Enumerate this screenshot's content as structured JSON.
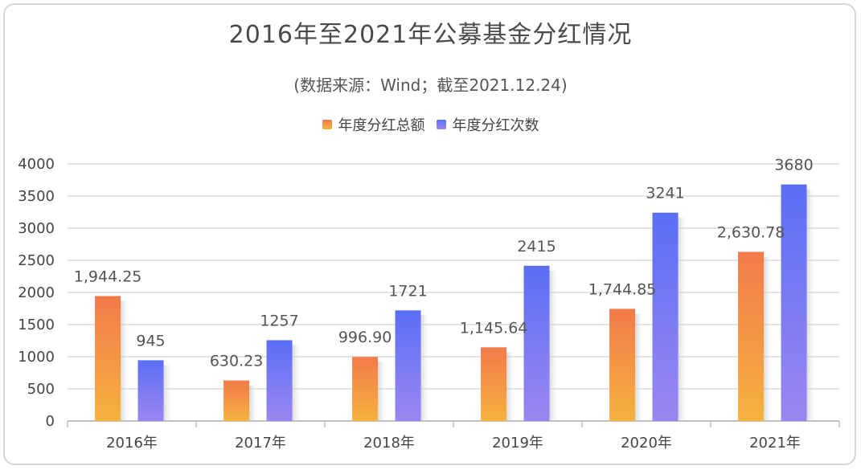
{
  "chart_data": {
    "type": "bar",
    "title": "2016年至2021年公募基金分红情况",
    "subtitle": "(数据来源：Wind；截至2021.12.24)",
    "categories": [
      "2016年",
      "2017年",
      "2018年",
      "2019年",
      "2020年",
      "2021年"
    ],
    "series": [
      {
        "name": "年度分红总额",
        "values": [
          1944.25,
          630.23,
          996.9,
          1145.64,
          1744.85,
          2630.78
        ],
        "labels": [
          "1,944.25",
          "630.23",
          "996.90",
          "1,145.64",
          "1,744.85",
          "2,630.78"
        ],
        "color_top": "#f27a4a",
        "color_bottom": "#f5b23f"
      },
      {
        "name": "年度分红次数",
        "values": [
          945,
          1257,
          1721,
          2415,
          3241,
          3680
        ],
        "labels": [
          "945",
          "1257",
          "1721",
          "2415",
          "3241",
          "3680"
        ],
        "color_top": "#5a6ff5",
        "color_bottom": "#9b86f0"
      }
    ],
    "yticks": [
      "0",
      "500",
      "1000",
      "1500",
      "2000",
      "2500",
      "3000",
      "3500",
      "4000"
    ],
    "ylim": [
      0,
      4000
    ],
    "grid": true,
    "legend_position": "top-center"
  }
}
